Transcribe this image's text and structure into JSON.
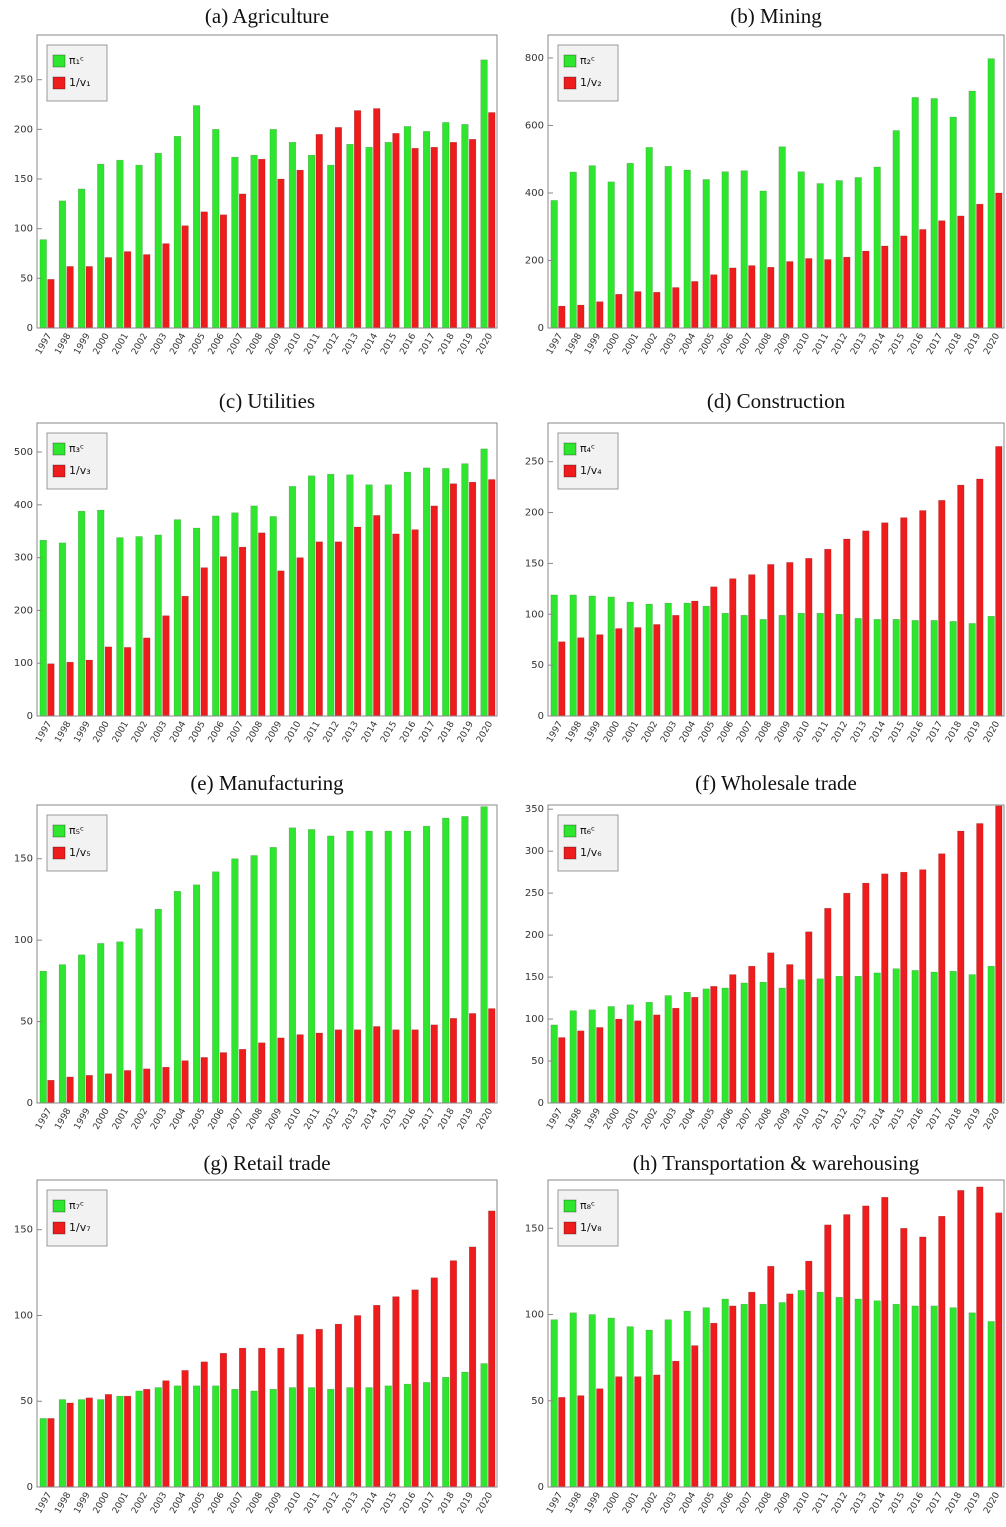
{
  "chart_data": [
    {
      "type": "bar",
      "title": "(a)  Agriculture",
      "categories": [
        "1997",
        "1998",
        "1999",
        "2000",
        "2001",
        "2002",
        "2003",
        "2004",
        "2005",
        "2006",
        "2007",
        "2008",
        "2009",
        "2010",
        "2011",
        "2012",
        "2013",
        "2014",
        "2015",
        "2016",
        "2017",
        "2018",
        "2019",
        "2020"
      ],
      "series": [
        {
          "name": "π₁ᶜ",
          "color": "#2ee62e",
          "values": [
            89,
            128,
            140,
            165,
            169,
            164,
            176,
            193,
            224,
            200,
            172,
            174,
            200,
            187,
            174,
            164,
            185,
            182,
            187,
            203,
            198,
            207,
            205,
            270
          ]
        },
        {
          "name": "1/v₁",
          "color": "#ee1c1c",
          "values": [
            49,
            62,
            62,
            71,
            77,
            74,
            85,
            103,
            117,
            114,
            135,
            170,
            150,
            159,
            195,
            202,
            219,
            221,
            196,
            181,
            182,
            187,
            190,
            217
          ]
        }
      ],
      "ylim": [
        0,
        295
      ],
      "yticks": [
        0,
        50,
        100,
        150,
        200,
        250
      ]
    },
    {
      "type": "bar",
      "title": "(b)  Mining",
      "categories": [
        "1997",
        "1998",
        "1999",
        "2000",
        "2001",
        "2002",
        "2003",
        "2004",
        "2005",
        "2006",
        "2007",
        "2008",
        "2009",
        "2010",
        "2011",
        "2012",
        "2013",
        "2014",
        "2015",
        "2016",
        "2017",
        "2018",
        "2019",
        "2020"
      ],
      "series": [
        {
          "name": "π₂ᶜ",
          "color": "#2ee62e",
          "values": [
            378,
            462,
            481,
            433,
            488,
            535,
            479,
            468,
            440,
            463,
            466,
            406,
            537,
            463,
            428,
            437,
            446,
            477,
            585,
            683,
            680,
            625,
            702,
            798
          ]
        },
        {
          "name": "1/v₂",
          "color": "#ee1c1c",
          "values": [
            65,
            68,
            78,
            100,
            108,
            106,
            120,
            138,
            158,
            178,
            185,
            180,
            197,
            206,
            203,
            210,
            228,
            243,
            273,
            292,
            318,
            332,
            367,
            400
          ]
        }
      ],
      "ylim": [
        0,
        868
      ],
      "yticks": [
        0,
        200,
        400,
        600,
        800
      ]
    },
    {
      "type": "bar",
      "title": "(c)  Utilities",
      "categories": [
        "1997",
        "1998",
        "1999",
        "2000",
        "2001",
        "2002",
        "2003",
        "2004",
        "2005",
        "2006",
        "2007",
        "2008",
        "2009",
        "2010",
        "2011",
        "2012",
        "2013",
        "2014",
        "2015",
        "2016",
        "2017",
        "2018",
        "2019",
        "2020"
      ],
      "series": [
        {
          "name": "π₃ᶜ",
          "color": "#2ee62e",
          "values": [
            333,
            328,
            388,
            390,
            338,
            340,
            343,
            372,
            356,
            379,
            385,
            398,
            378,
            435,
            455,
            458,
            457,
            438,
            438,
            462,
            470,
            469,
            478,
            506
          ]
        },
        {
          "name": "1/v₃",
          "color": "#ee1c1c",
          "values": [
            99,
            102,
            106,
            131,
            130,
            148,
            190,
            227,
            281,
            302,
            320,
            347,
            275,
            300,
            330,
            330,
            358,
            380,
            345,
            353,
            398,
            440,
            443,
            448
          ]
        }
      ],
      "ylim": [
        0,
        555
      ],
      "yticks": [
        0,
        100,
        200,
        300,
        400,
        500
      ]
    },
    {
      "type": "bar",
      "title": "(d)  Construction",
      "categories": [
        "1997",
        "1998",
        "1999",
        "2000",
        "2001",
        "2002",
        "2003",
        "2004",
        "2005",
        "2006",
        "2007",
        "2008",
        "2009",
        "2010",
        "2011",
        "2012",
        "2013",
        "2014",
        "2015",
        "2016",
        "2017",
        "2018",
        "2019",
        "2020"
      ],
      "series": [
        {
          "name": "π₄ᶜ",
          "color": "#2ee62e",
          "values": [
            119,
            119,
            118,
            117,
            112,
            110,
            111,
            111,
            108,
            101,
            99,
            95,
            99,
            101,
            101,
            100,
            96,
            95,
            95,
            94,
            94,
            93,
            91,
            98
          ]
        },
        {
          "name": "1/v₄",
          "color": "#ee1c1c",
          "values": [
            73,
            77,
            80,
            86,
            87,
            90,
            99,
            113,
            127,
            135,
            139,
            149,
            151,
            155,
            164,
            174,
            182,
            190,
            195,
            202,
            212,
            227,
            233,
            265
          ]
        }
      ],
      "ylim": [
        0,
        288
      ],
      "yticks": [
        0,
        50,
        100,
        150,
        200,
        250
      ]
    },
    {
      "type": "bar",
      "title": "(e)  Manufacturing",
      "categories": [
        "1997",
        "1998",
        "1999",
        "2000",
        "2001",
        "2002",
        "2003",
        "2004",
        "2005",
        "2006",
        "2007",
        "2008",
        "2009",
        "2010",
        "2011",
        "2012",
        "2013",
        "2014",
        "2015",
        "2016",
        "2017",
        "2018",
        "2019",
        "2020"
      ],
      "series": [
        {
          "name": "π₅ᶜ",
          "color": "#2ee62e",
          "values": [
            81,
            85,
            91,
            98,
            99,
            107,
            119,
            130,
            134,
            142,
            150,
            152,
            157,
            169,
            168,
            164,
            167,
            167,
            167,
            167,
            170,
            175,
            176,
            182
          ]
        },
        {
          "name": "1/v₅",
          "color": "#ee1c1c",
          "values": [
            14,
            16,
            17,
            18,
            20,
            21,
            22,
            26,
            28,
            31,
            33,
            37,
            40,
            42,
            43,
            45,
            45,
            47,
            45,
            45,
            48,
            52,
            55,
            58
          ]
        }
      ],
      "ylim": [
        0,
        183
      ],
      "yticks": [
        0,
        50,
        100,
        150
      ]
    },
    {
      "type": "bar",
      "title": "(f)  Wholesale trade",
      "categories": [
        "1997",
        "1998",
        "1999",
        "2000",
        "2001",
        "2002",
        "2003",
        "2004",
        "2005",
        "2006",
        "2007",
        "2008",
        "2009",
        "2010",
        "2011",
        "2012",
        "2013",
        "2014",
        "2015",
        "2016",
        "2017",
        "2018",
        "2019",
        "2020"
      ],
      "series": [
        {
          "name": "π₆ᶜ",
          "color": "#2ee62e",
          "values": [
            93,
            110,
            111,
            115,
            117,
            120,
            128,
            132,
            136,
            137,
            143,
            144,
            137,
            147,
            148,
            151,
            151,
            155,
            160,
            158,
            156,
            157,
            153,
            163
          ]
        },
        {
          "name": "1/v₆",
          "color": "#ee1c1c",
          "values": [
            78,
            86,
            90,
            100,
            98,
            105,
            113,
            126,
            139,
            153,
            163,
            179,
            165,
            204,
            232,
            250,
            262,
            273,
            275,
            278,
            297,
            324,
            333,
            354
          ]
        }
      ],
      "ylim": [
        0,
        355
      ],
      "yticks": [
        0,
        50,
        100,
        150,
        200,
        250,
        300,
        350
      ]
    },
    {
      "type": "bar",
      "title": "(g)  Retail trade",
      "categories": [
        "1997",
        "1998",
        "1999",
        "2000",
        "2001",
        "2002",
        "2003",
        "2004",
        "2005",
        "2006",
        "2007",
        "2008",
        "2009",
        "2010",
        "2011",
        "2012",
        "2013",
        "2014",
        "2015",
        "2016",
        "2017",
        "2018",
        "2019",
        "2020"
      ],
      "series": [
        {
          "name": "π₇ᶜ",
          "color": "#2ee62e",
          "values": [
            40,
            51,
            51,
            51,
            53,
            56,
            58,
            59,
            59,
            59,
            57,
            56,
            57,
            58,
            58,
            57,
            58,
            58,
            59,
            60,
            61,
            64,
            67,
            72
          ]
        },
        {
          "name": "1/v₇",
          "color": "#ee1c1c",
          "values": [
            40,
            49,
            52,
            54,
            53,
            57,
            62,
            68,
            73,
            78,
            81,
            81,
            81,
            89,
            92,
            95,
            100,
            106,
            111,
            115,
            122,
            132,
            140,
            161
          ]
        }
      ],
      "ylim": [
        0,
        179
      ],
      "yticks": [
        0,
        50,
        100,
        150
      ]
    },
    {
      "type": "bar",
      "title": "(h)  Transportation & warehousing",
      "categories": [
        "1997",
        "1998",
        "1999",
        "2000",
        "2001",
        "2002",
        "2003",
        "2004",
        "2005",
        "2006",
        "2007",
        "2008",
        "2009",
        "2010",
        "2011",
        "2012",
        "2013",
        "2014",
        "2015",
        "2016",
        "2017",
        "2018",
        "2019",
        "2020"
      ],
      "series": [
        {
          "name": "π₈ᶜ",
          "color": "#2ee62e",
          "values": [
            97,
            101,
            100,
            98,
            93,
            91,
            97,
            102,
            104,
            109,
            106,
            106,
            107,
            114,
            113,
            110,
            109,
            108,
            106,
            105,
            105,
            104,
            101,
            96
          ]
        },
        {
          "name": "1/v₈",
          "color": "#ee1c1c",
          "values": [
            52,
            53,
            57,
            64,
            64,
            65,
            73,
            82,
            95,
            105,
            113,
            128,
            112,
            131,
            152,
            158,
            163,
            168,
            150,
            145,
            157,
            172,
            174,
            159
          ]
        }
      ],
      "ylim": [
        0,
        178
      ],
      "yticks": [
        0,
        50,
        100,
        150
      ]
    }
  ]
}
